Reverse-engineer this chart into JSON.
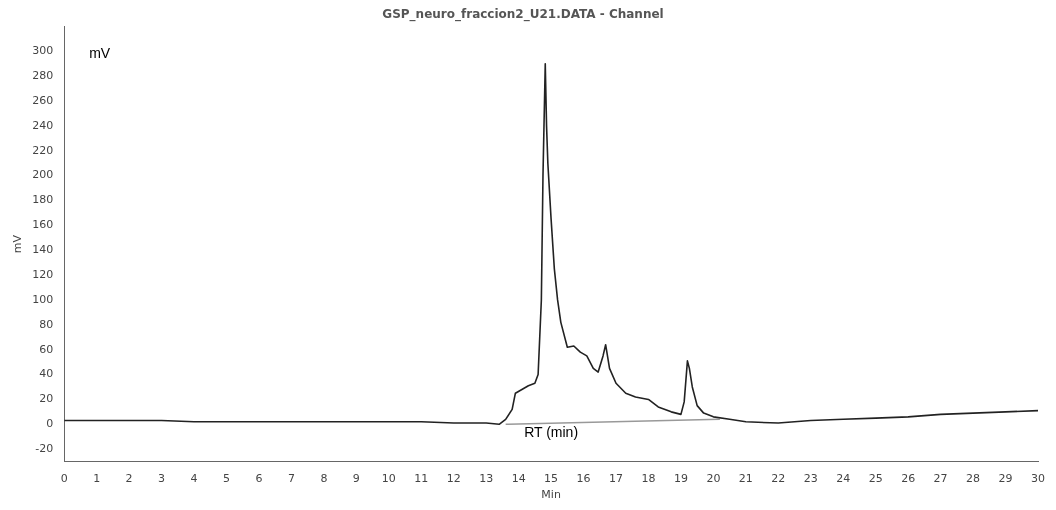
{
  "chart_data": {
    "type": "line",
    "title": "GSP_neuro_fraccion2_U21.DATA - Channel",
    "xlabel": "Min",
    "ylabel": "mV",
    "annotations": [
      "mV",
      "RT (min)"
    ],
    "xlim": [
      0,
      30
    ],
    "xticks": [
      0,
      1,
      2,
      3,
      4,
      5,
      6,
      7,
      8,
      9,
      10,
      11,
      12,
      13,
      14,
      15,
      16,
      17,
      18,
      19,
      20,
      21,
      22,
      23,
      24,
      25,
      26,
      27,
      28,
      29,
      30
    ],
    "ylim": [
      -30,
      320
    ],
    "yticks": [
      -20,
      0,
      20,
      40,
      60,
      80,
      100,
      120,
      140,
      160,
      180,
      200,
      220,
      240,
      260,
      280,
      300
    ],
    "grid": false,
    "legend": false,
    "marker": "none",
    "line_style": "solid",
    "series": [
      {
        "color": "#222222",
        "x": [
          0,
          0.5,
          1,
          2,
          3,
          4,
          5,
          6,
          7,
          8,
          9,
          10,
          11,
          12,
          13,
          13.4,
          13.6,
          13.8,
          13.9,
          14.1,
          14.3,
          14.5,
          14.6,
          14.7,
          14.75,
          14.82,
          14.86,
          14.9,
          15.0,
          15.1,
          15.2,
          15.3,
          15.5,
          15.7,
          15.9,
          16.1,
          16.3,
          16.45,
          16.6,
          16.68,
          16.8,
          17.0,
          17.3,
          17.6,
          18.0,
          18.3,
          18.7,
          19.0,
          19.1,
          19.2,
          19.26,
          19.35,
          19.5,
          19.7,
          20.0,
          20.5,
          21,
          22,
          23,
          24,
          25,
          26,
          27,
          28,
          29,
          30
        ],
        "values": [
          3,
          3,
          3,
          3,
          3,
          2,
          2,
          2,
          2,
          2,
          2,
          2,
          2,
          1,
          1,
          0,
          4,
          12,
          25,
          28,
          31,
          33,
          40,
          100,
          200,
          290,
          240,
          210,
          165,
          125,
          100,
          82,
          62,
          63,
          58,
          55,
          45,
          42,
          55,
          64,
          45,
          33,
          25,
          22,
          20,
          14,
          10,
          8,
          18,
          51,
          45,
          30,
          15,
          9,
          6,
          4,
          2,
          1,
          3,
          4,
          5,
          6,
          8,
          9,
          10,
          11
        ]
      },
      {
        "color": "#999999",
        "x": [
          13.6,
          20.2
        ],
        "values": [
          0,
          4
        ]
      }
    ]
  }
}
